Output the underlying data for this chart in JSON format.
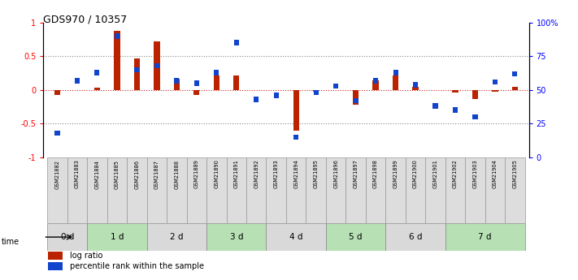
{
  "title": "GDS970 / 10357",
  "samples": [
    "GSM21882",
    "GSM21883",
    "GSM21884",
    "GSM21885",
    "GSM21886",
    "GSM21887",
    "GSM21888",
    "GSM21889",
    "GSM21890",
    "GSM21891",
    "GSM21892",
    "GSM21893",
    "GSM21894",
    "GSM21895",
    "GSM21896",
    "GSM21897",
    "GSM21898",
    "GSM21899",
    "GSM21900",
    "GSM21901",
    "GSM21902",
    "GSM21903",
    "GSM21904",
    "GSM21905"
  ],
  "log_ratio": [
    -0.08,
    0.0,
    0.04,
    0.87,
    0.47,
    0.72,
    0.17,
    -0.07,
    0.22,
    0.22,
    0.0,
    0.0,
    -0.6,
    -0.02,
    0.0,
    -0.22,
    0.14,
    0.22,
    0.05,
    0.0,
    -0.04,
    -0.13,
    -0.03,
    0.05
  ],
  "percentile_rank": [
    18,
    57,
    63,
    90,
    65,
    68,
    57,
    55,
    63,
    85,
    43,
    46,
    15,
    48,
    53,
    42,
    57,
    63,
    54,
    38,
    35,
    30,
    56,
    62
  ],
  "time_groups": [
    {
      "label": "0 d",
      "start": 0,
      "end": 2,
      "color": "#d9d9d9"
    },
    {
      "label": "1 d",
      "start": 2,
      "end": 5,
      "color": "#b7e1b4"
    },
    {
      "label": "2 d",
      "start": 5,
      "end": 8,
      "color": "#d9d9d9"
    },
    {
      "label": "3 d",
      "start": 8,
      "end": 11,
      "color": "#b7e1b4"
    },
    {
      "label": "4 d",
      "start": 11,
      "end": 14,
      "color": "#d9d9d9"
    },
    {
      "label": "5 d",
      "start": 14,
      "end": 17,
      "color": "#b7e1b4"
    },
    {
      "label": "6 d",
      "start": 17,
      "end": 20,
      "color": "#d9d9d9"
    },
    {
      "label": "7 d",
      "start": 20,
      "end": 24,
      "color": "#b7e1b4"
    }
  ],
  "ylim_left": [
    -1,
    1
  ],
  "ylim_right": [
    0,
    100
  ],
  "yticks_left": [
    -1,
    -0.5,
    0,
    0.5,
    1
  ],
  "yticks_right": [
    0,
    25,
    50,
    75,
    100
  ],
  "ytick_labels_right": [
    "0",
    "25",
    "50",
    "75",
    "100%"
  ],
  "bar_color_red": "#bb2200",
  "bar_color_blue": "#1144cc",
  "dotted_line_color": "#888888",
  "zero_line_color": "#cc2222",
  "legend_red": "log ratio",
  "legend_blue": "percentile rank within the sample",
  "bar_width": 0.5
}
